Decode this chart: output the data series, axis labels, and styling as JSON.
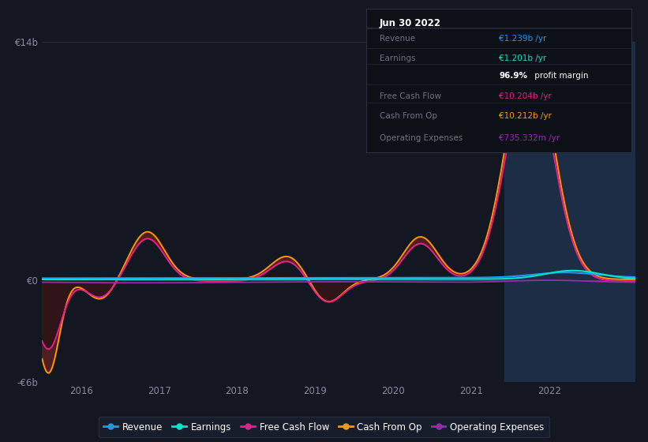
{
  "bg_color": "#131722",
  "plot_bg_color": "#131722",
  "x_min": 2015.5,
  "x_max": 2023.1,
  "y_min": -6,
  "y_max": 14,
  "y_ticks": [
    -6,
    0,
    14
  ],
  "y_tick_labels": [
    "-€6b",
    "€0",
    "€14b"
  ],
  "x_ticks": [
    2016,
    2017,
    2018,
    2019,
    2020,
    2021,
    2022
  ],
  "highlight_x_start": 2021.42,
  "highlight_x_end": 2023.1,
  "highlight_color": "#1c2d45",
  "revenue_color": "#2196f3",
  "earnings_color": "#00e5cc",
  "fcf_color": "#e91e8c",
  "cashfromop_color": "#ff9800",
  "opex_color": "#9c27b0",
  "legend_items": [
    {
      "label": "Revenue",
      "color": "#2196f3"
    },
    {
      "label": "Earnings",
      "color": "#00e5cc"
    },
    {
      "label": "Free Cash Flow",
      "color": "#e91e8c"
    },
    {
      "label": "Cash From Op",
      "color": "#ff9800"
    },
    {
      "label": "Operating Expenses",
      "color": "#9c27b0"
    }
  ],
  "tooltip": {
    "title": "Jun 30 2022",
    "rows": [
      {
        "label": "Revenue",
        "value": "€1.239b /yr",
        "value_color": "#2196f3"
      },
      {
        "label": "Earnings",
        "value": "€1.201b /yr",
        "value_color": "#00e5cc"
      },
      {
        "label": "",
        "value": "96.9% profit margin",
        "value_color": "#ffffff"
      },
      {
        "label": "Free Cash Flow",
        "value": "€10.204b /yr",
        "value_color": "#e91e8c"
      },
      {
        "label": "Cash From Op",
        "value": "€10.212b /yr",
        "value_color": "#ff9800"
      },
      {
        "label": "Operating Expenses",
        "value": "€735.332m /yr",
        "value_color": "#9c27b0"
      }
    ]
  }
}
